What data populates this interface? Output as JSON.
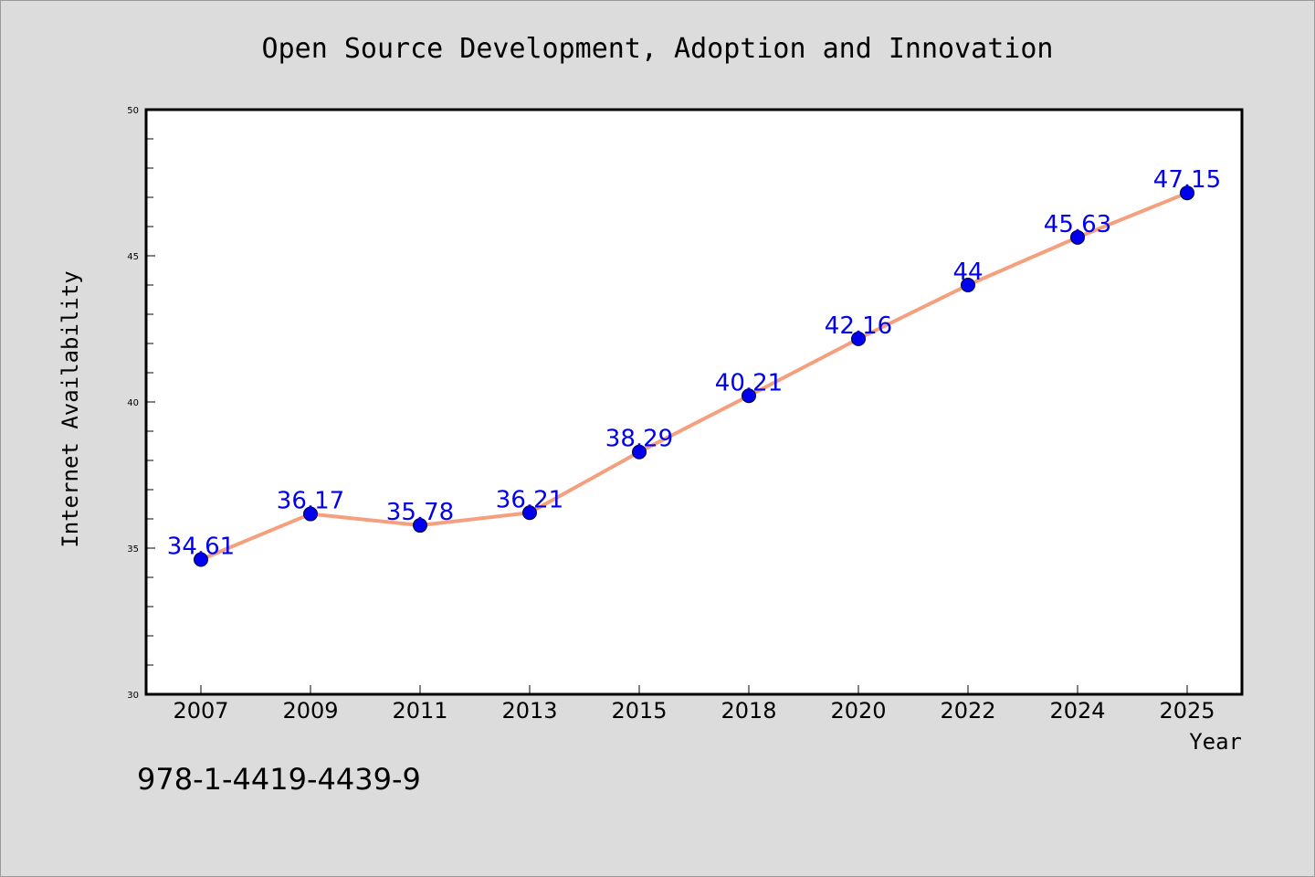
{
  "chart_data": {
    "type": "line",
    "title": "Open Source Development, Adoption and Innovation",
    "xlabel": "Year",
    "ylabel": "Internet Availability",
    "categories": [
      "2007",
      "2009",
      "2011",
      "2013",
      "2015",
      "2018",
      "2020",
      "2022",
      "2024",
      "2025"
    ],
    "values": [
      34.61,
      36.17,
      35.78,
      36.21,
      38.29,
      40.21,
      42.16,
      44,
      45.63,
      47.15
    ],
    "ylim": [
      30,
      50
    ],
    "yticks": [
      "30",
      "35",
      "40",
      "45",
      "50"
    ],
    "grid": false,
    "line_color": "#f4a07e",
    "marker_color": "#0000ee",
    "label_color": "#0000ee"
  },
  "footer": {
    "isbn": "978-1-4419-4439-9"
  }
}
